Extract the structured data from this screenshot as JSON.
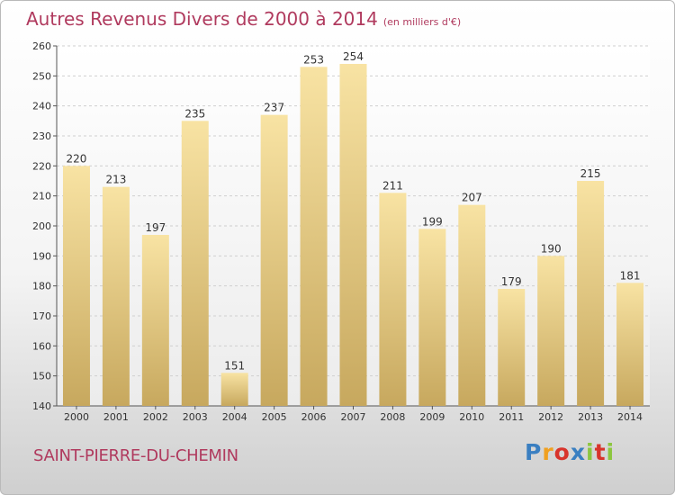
{
  "title": "Autres Revenus Divers de 2000 à 2014",
  "title_unit": "(en milliers d'€)",
  "place": "SAINT-PIERRE-DU-CHEMIN",
  "logo": {
    "letters": [
      "P",
      "r",
      "o",
      "x",
      "i",
      "t",
      "i"
    ],
    "colors": [
      "#3a7fc1",
      "#f0a020",
      "#d8342b",
      "#3a7fc1",
      "#8cc63f",
      "#d8342b",
      "#8cc63f"
    ]
  },
  "colors": {
    "bar_top": "#f8e3a3",
    "bar_bottom": "#c7a85e",
    "title": "#b03a5e"
  },
  "chart_data": {
    "type": "bar",
    "categories": [
      "2000",
      "2001",
      "2002",
      "2003",
      "2004",
      "2005",
      "2006",
      "2007",
      "2008",
      "2009",
      "2010",
      "2011",
      "2012",
      "2013",
      "2014"
    ],
    "values": [
      220,
      213,
      197,
      235,
      151,
      237,
      253,
      254,
      211,
      199,
      207,
      179,
      190,
      215,
      181
    ],
    "ylim": [
      140,
      260
    ],
    "yticks": [
      140,
      150,
      160,
      170,
      180,
      190,
      200,
      210,
      220,
      230,
      240,
      250,
      260
    ],
    "grid": true
  }
}
